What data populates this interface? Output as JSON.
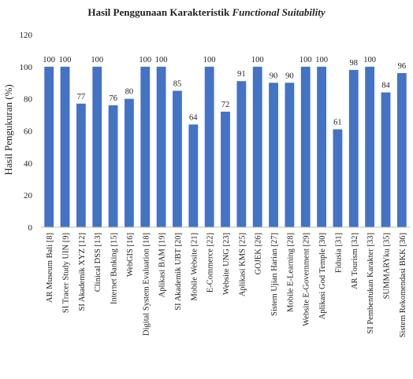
{
  "chart_data": {
    "type": "bar",
    "title_main": "Hasil Penggunaan Karakteristik",
    "title_emph": "Functional Suitability",
    "xlabel": "",
    "ylabel": "Hasil Pengukuran (%)",
    "ylim": [
      0,
      120
    ],
    "yticks": [
      0,
      20,
      40,
      60,
      80,
      100,
      120
    ],
    "grid": false,
    "legend": "none",
    "bar_color": "#4472c4",
    "categories": [
      "AR Museum Bali [8]",
      "SI Tracer Study UIN [9]",
      "SI Akademik XYZ [12]",
      "Clinical DSS [13]",
      "Internet Banking [15]",
      "WebGIS [16]",
      "Digital System Evaluation [18]",
      "Aplikasi BAM [19]",
      "SI Akademik UBT [20]",
      "Mobile Website [21]",
      "E-Commerce [22]",
      "Website UNG [23]",
      "Aplikasi KMS [25]",
      "GOJEK [26]",
      "Sistem Ujian Harian [27]",
      "Mobile E-Learning [28]",
      "Website E-Government [29]",
      "Aplikasi God Temple [30]",
      "Fidusia [31]",
      "AR Tourism [32]",
      "SI Pembentukan Karakter [33]",
      "SUMMARYku [35]",
      "Sistem Rekomendasi BKK [36]"
    ],
    "values": [
      100,
      100,
      77,
      100,
      76,
      80,
      100,
      100,
      85,
      64,
      100,
      72,
      91,
      100,
      90,
      90,
      100,
      100,
      61,
      98,
      100,
      84,
      96
    ]
  }
}
